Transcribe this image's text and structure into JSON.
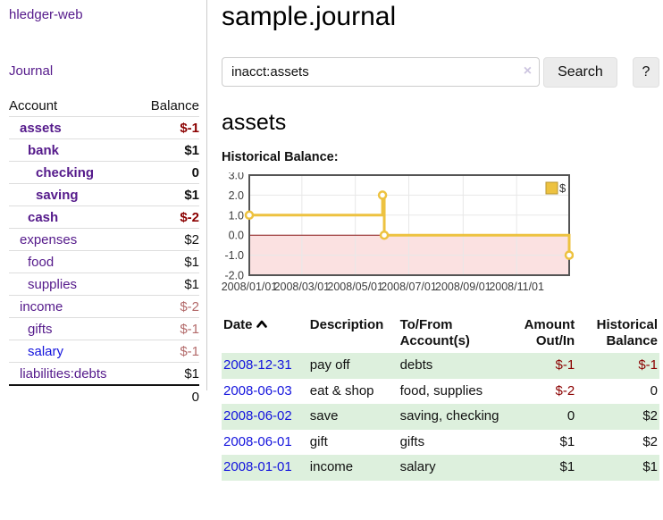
{
  "app": {
    "brand": "hledger-web",
    "nav_journal": "Journal"
  },
  "sidebar": {
    "header": {
      "account": "Account",
      "balance": "Balance"
    },
    "accounts": [
      {
        "name": "assets",
        "balance": "$-1"
      },
      {
        "name": "bank",
        "balance": "$1"
      },
      {
        "name": "checking",
        "balance": "0"
      },
      {
        "name": "saving",
        "balance": "$1"
      },
      {
        "name": "cash",
        "balance": "$-2"
      },
      {
        "name": "expenses",
        "balance": "$2"
      },
      {
        "name": "food",
        "balance": "$1"
      },
      {
        "name": "supplies",
        "balance": "$1"
      },
      {
        "name": "income",
        "balance": "$-2"
      },
      {
        "name": "gifts",
        "balance": "$-1"
      },
      {
        "name": "salary",
        "balance": "$-1"
      },
      {
        "name": "liabilities:debts",
        "balance": "$1"
      }
    ],
    "total": "0"
  },
  "header": {
    "title": "sample.journal"
  },
  "search": {
    "value": "inacct:assets",
    "clear_icon": "×",
    "button": "Search",
    "help_button": "?"
  },
  "account_page": {
    "title": "assets",
    "chart_label": "Historical Balance:"
  },
  "chart_data": {
    "type": "line",
    "title": "Historical Balance:",
    "series": [
      {
        "name": "$",
        "color": "#edc240",
        "step": true,
        "points": [
          [
            "2008-01-01",
            1
          ],
          [
            "2008-06-01",
            2
          ],
          [
            "2008-06-03",
            0
          ],
          [
            "2008-12-31",
            -1
          ]
        ]
      }
    ],
    "x_range": [
      "2008-01-01",
      "2008-12-31"
    ],
    "ylim": [
      -2,
      3
    ],
    "yticks": [
      3,
      2,
      1,
      0,
      -1,
      -2
    ],
    "xticks": [
      {
        "date": "2008-01-01",
        "label": "2008/01/01"
      },
      {
        "date": "2008-03-01",
        "label": "2008/03/01"
      },
      {
        "date": "2008-05-01",
        "label": "2008/05/01"
      },
      {
        "date": "2008-07-01",
        "label": "2008/07/01"
      },
      {
        "date": "2008-09-01",
        "label": "2008/09/01"
      },
      {
        "date": "2008-11-01",
        "label": "2008/11/01"
      }
    ],
    "grid": true,
    "legend_position": "top-right",
    "negative_region_fill": "#fbe1e1",
    "zero_line_color": "#8c1717",
    "border_color": "#545454",
    "gridline_color": "#e8e8e8"
  },
  "register": {
    "columns": {
      "date": "Date",
      "description": "Description",
      "accounts": "To/From Account(s)",
      "amount": "Amount Out/In",
      "balance": "Historical Balance"
    },
    "rows": [
      {
        "date": "2008-12-31",
        "description": "pay off",
        "accounts": "debts",
        "amount": "$-1",
        "balance": "$-1"
      },
      {
        "date": "2008-06-03",
        "description": "eat & shop",
        "accounts": "food, supplies",
        "amount": "$-2",
        "balance": "0"
      },
      {
        "date": "2008-06-02",
        "description": "save",
        "accounts": "saving, checking",
        "amount": "0",
        "balance": "$2"
      },
      {
        "date": "2008-06-01",
        "description": "gift",
        "accounts": "gifts",
        "amount": "$1",
        "balance": "$2"
      },
      {
        "date": "2008-01-01",
        "description": "income",
        "accounts": "salary",
        "amount": "$1",
        "balance": "$1"
      }
    ]
  }
}
